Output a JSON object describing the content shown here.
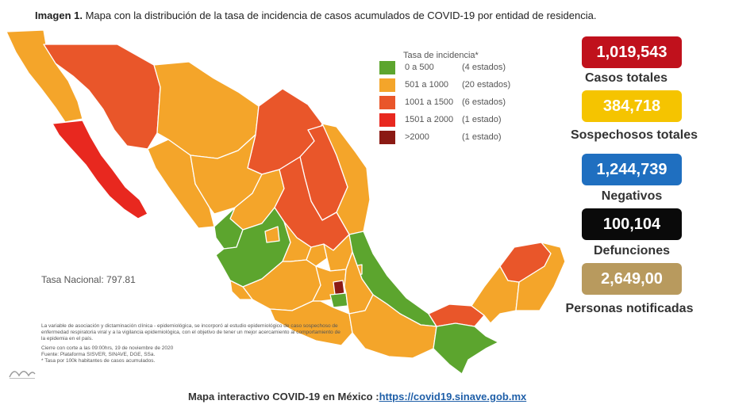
{
  "title_bold": "Imagen 1.",
  "title_rest": " Mapa con la distribución de la tasa de incidencia de casos acumulados de COVID-19 por entidad de residencia.",
  "legend": {
    "title": "Tasa de incidencia*",
    "items": [
      {
        "range": "0 a    500",
        "count": "(4 estados)",
        "color": "#5ca52e"
      },
      {
        "range": "501 a  1000",
        "count": "(20 estados)",
        "color": "#f4a52a"
      },
      {
        "range": "1001 a  1500",
        "count": "(6 estados)",
        "color": "#e9562a"
      },
      {
        "range": "1501 a  2000",
        "count": "(1 estado)",
        "color": "#e8281f"
      },
      {
        "range": ">2000",
        "count": "(1 estado)",
        "color": "#8b1a14"
      }
    ]
  },
  "national_rate": "Tasa Nacional: 797.81",
  "notes": {
    "para1": "La variable de asociación y dictaminación clínica - epidemiológica, se incorporó al estudio epidemiológico de caso sospechoso de enfermedad respiratoria viral y a la vigilancia epidemiológica, con el objetivo de tener un mejor acercamiento al comportamiento de la epidemia en el país.",
    "line1": "Cierre con corte a las 09:00hrs, 19 de noviembre de 2020",
    "line2": "Fuente: Plataforma SISVER, SINAVE, DGE, SSa.",
    "line3": "* Tasa por 100k habitantes de casos acumulados."
  },
  "stats": [
    {
      "value": "1,019,543",
      "label": "Casos totales",
      "color": "#c0111c"
    },
    {
      "value": "384,718",
      "label": "Sospechosos totales",
      "color": "#f5c400"
    },
    {
      "value": "1,244,739",
      "label": "Negativos",
      "color": "#1f6fc0"
    },
    {
      "value": "100,104",
      "label": "Defunciones",
      "color": "#0a0a0a"
    },
    {
      "value": "2,649,00",
      "label": "Personas notificadas",
      "color": "#b89a5e"
    }
  ],
  "footer": {
    "text": "Mapa interactivo COVID-19 en México :",
    "link": "https://covid19.sinave.gob.mx"
  }
}
